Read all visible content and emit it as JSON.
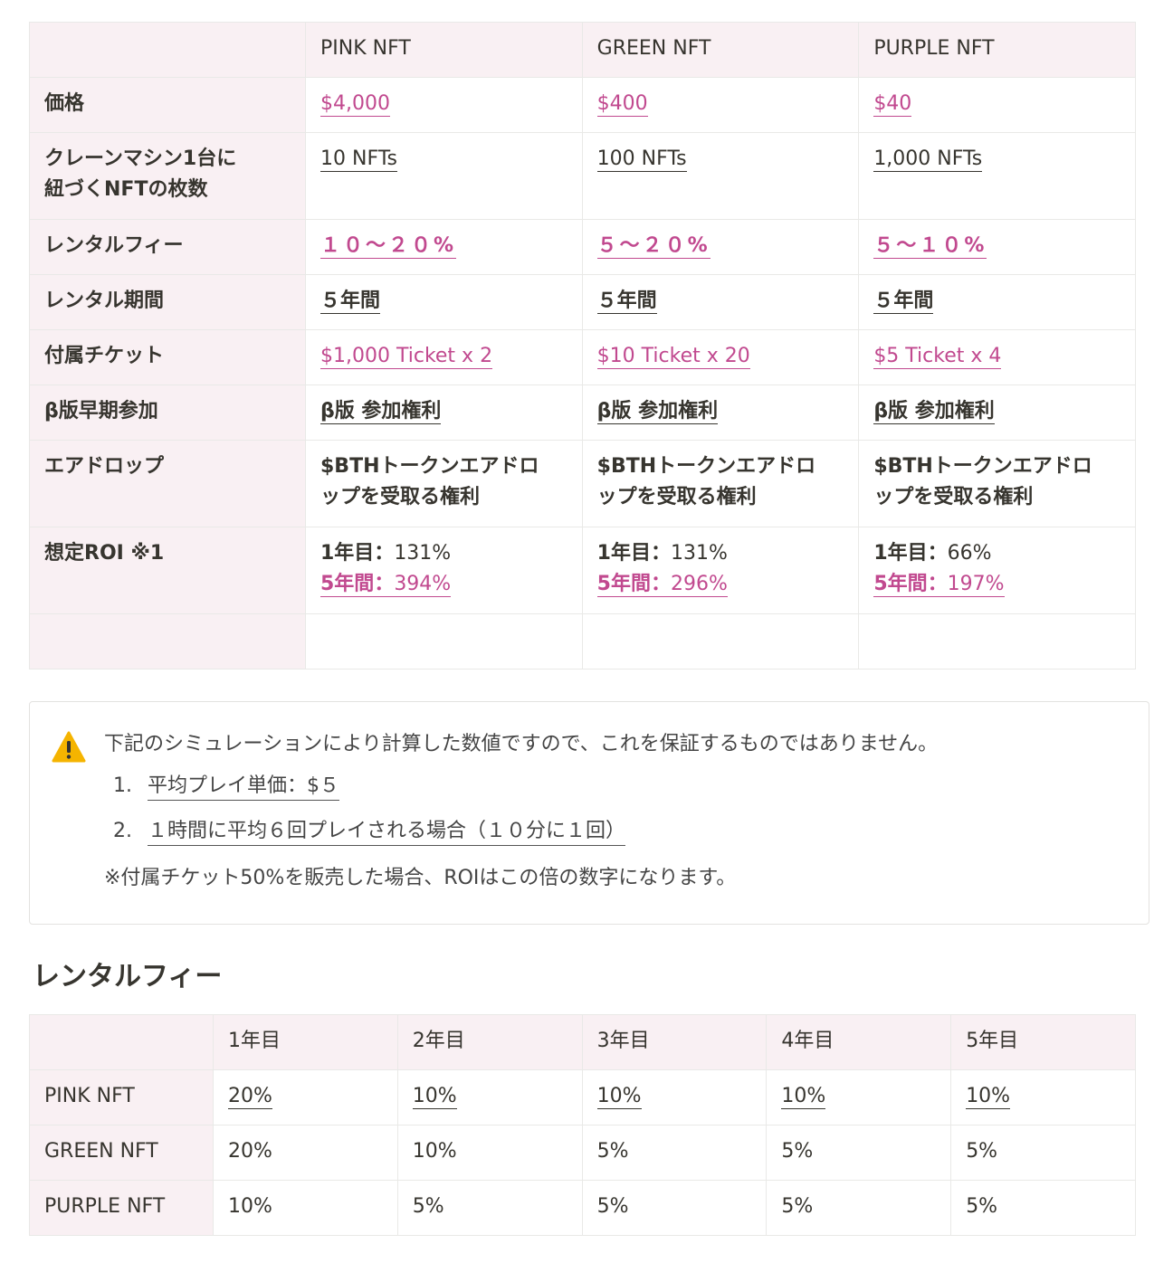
{
  "comparison_table": {
    "headers": [
      "",
      "PINK NFT",
      "GREEN NFT",
      "PURPLE NFT"
    ],
    "rows": {
      "price": {
        "label": "価格",
        "values": [
          "$4,000",
          "$400",
          "$40"
        ]
      },
      "nft_count": {
        "label_line1": "クレーンマシン1台に",
        "label_line2": "紐づくNFTの枚数",
        "values": [
          "10 NFTs",
          "100 NFTs",
          "1,000 NFTs"
        ]
      },
      "rental_fee": {
        "label": "レンタルフィー",
        "values": [
          "１０～２０%",
          "５～２０%",
          "５～１０%"
        ]
      },
      "rental_period": {
        "label": "レンタル期間",
        "values": [
          "５年間",
          "５年間",
          "５年間"
        ]
      },
      "tickets": {
        "label": "付属チケット",
        "values": [
          "$1,000 Ticket x 2",
          "$10 Ticket x 20",
          "$5 Ticket x 4"
        ]
      },
      "beta": {
        "label": "β版早期参加",
        "values": [
          "β版 参加権利",
          "β版 参加権利",
          "β版 参加権利"
        ]
      },
      "airdrop": {
        "label": "エアドロップ",
        "line1": "$BTHトークンエアドロ",
        "line2": "ップを受取る権利"
      },
      "roi": {
        "label": "想定ROI ※1",
        "year1_label": "1年目：",
        "year5_label": "5年間：",
        "year1_values": [
          "131%",
          "131%",
          "66%"
        ],
        "year5_values": [
          "394%",
          "296%",
          "197%"
        ]
      }
    }
  },
  "callout": {
    "icon": "warning-icon",
    "text": "下記のシミュレーションにより計算した数値ですので、これを保証するものではありません。",
    "items": [
      {
        "num": "1.",
        "text": "平均プレイ単価：$５"
      },
      {
        "num": "2.",
        "text": "１時間に平均６回プレイされる場合（１０分に１回）"
      }
    ],
    "note": "※付属チケット50%を販売した場合、ROIはこの倍の数字になります。"
  },
  "section_heading": "レンタルフィー",
  "rental_fee_table": {
    "headers": [
      "",
      "1年目",
      "2年目",
      "3年目",
      "4年目",
      "5年目"
    ],
    "rows": [
      {
        "label": "PINK NFT",
        "values": [
          "20%",
          "10%",
          "10%",
          "10%",
          "10%"
        ]
      },
      {
        "label": "GREEN NFT",
        "values": [
          "20%",
          "10%",
          "5%",
          "5%",
          "5%"
        ]
      },
      {
        "label": "PURPLE NFT",
        "values": [
          "10%",
          "5%",
          "5%",
          "5%",
          "5%"
        ]
      }
    ]
  },
  "colors": {
    "accent_pink": "#c1498f",
    "header_bg": "#f9f0f3",
    "border": "#e9e9e7",
    "warning": "#f5b400"
  }
}
